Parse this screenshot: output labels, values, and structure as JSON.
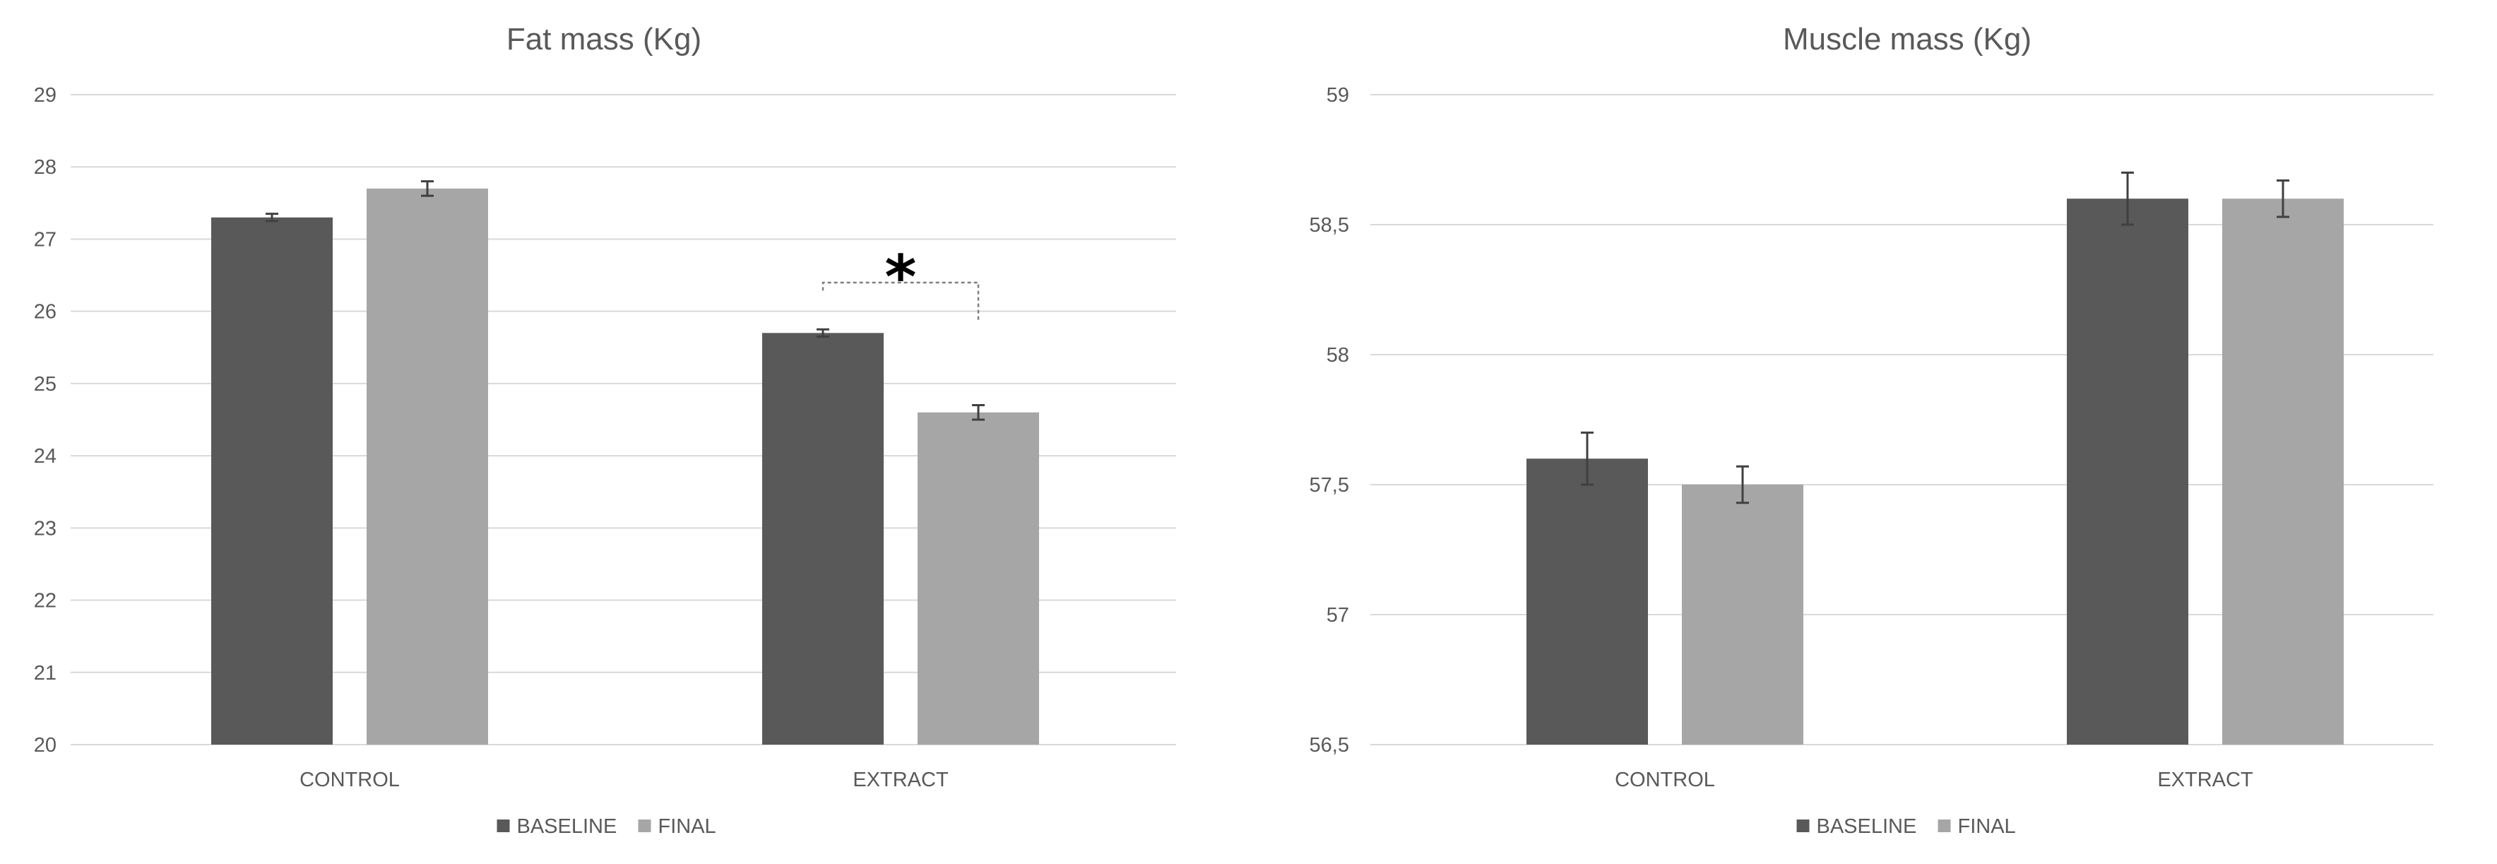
{
  "chart_data": [
    {
      "type": "bar",
      "title": "Fat mass (Kg)",
      "categories": [
        "CONTROL",
        "EXTRACT"
      ],
      "series": [
        {
          "name": "BASELINE",
          "values": [
            27.3,
            25.7
          ],
          "error": [
            0.05,
            0.05
          ]
        },
        {
          "name": "FINAL",
          "values": [
            27.7,
            24.6
          ],
          "error": [
            0.1,
            0.1
          ]
        }
      ],
      "ylim": [
        20,
        29
      ],
      "yticks": [
        "20",
        "21",
        "22",
        "23",
        "24",
        "25",
        "26",
        "27",
        "28",
        "29"
      ],
      "grid": true,
      "legend": "bottom",
      "annotation": {
        "text": "*",
        "category": "EXTRACT"
      }
    },
    {
      "type": "bar",
      "title": "Muscle mass (Kg)",
      "categories": [
        "CONTROL",
        "EXTRACT"
      ],
      "series": [
        {
          "name": "BASELINE",
          "values": [
            57.6,
            58.6
          ],
          "error": [
            0.1,
            0.1
          ]
        },
        {
          "name": "FINAL",
          "values": [
            57.5,
            58.6
          ],
          "error": [
            0.07,
            0.07
          ]
        }
      ],
      "ylim": [
        56.5,
        59
      ],
      "yticks": [
        "56,5",
        "57",
        "57,5",
        "58",
        "58,5",
        "59"
      ],
      "grid": true,
      "legend": "bottom"
    }
  ],
  "colors": {
    "BASELINE": "#595959",
    "FINAL": "#a6a6a6",
    "grid": "#d9d9d9",
    "text": "#595959"
  }
}
